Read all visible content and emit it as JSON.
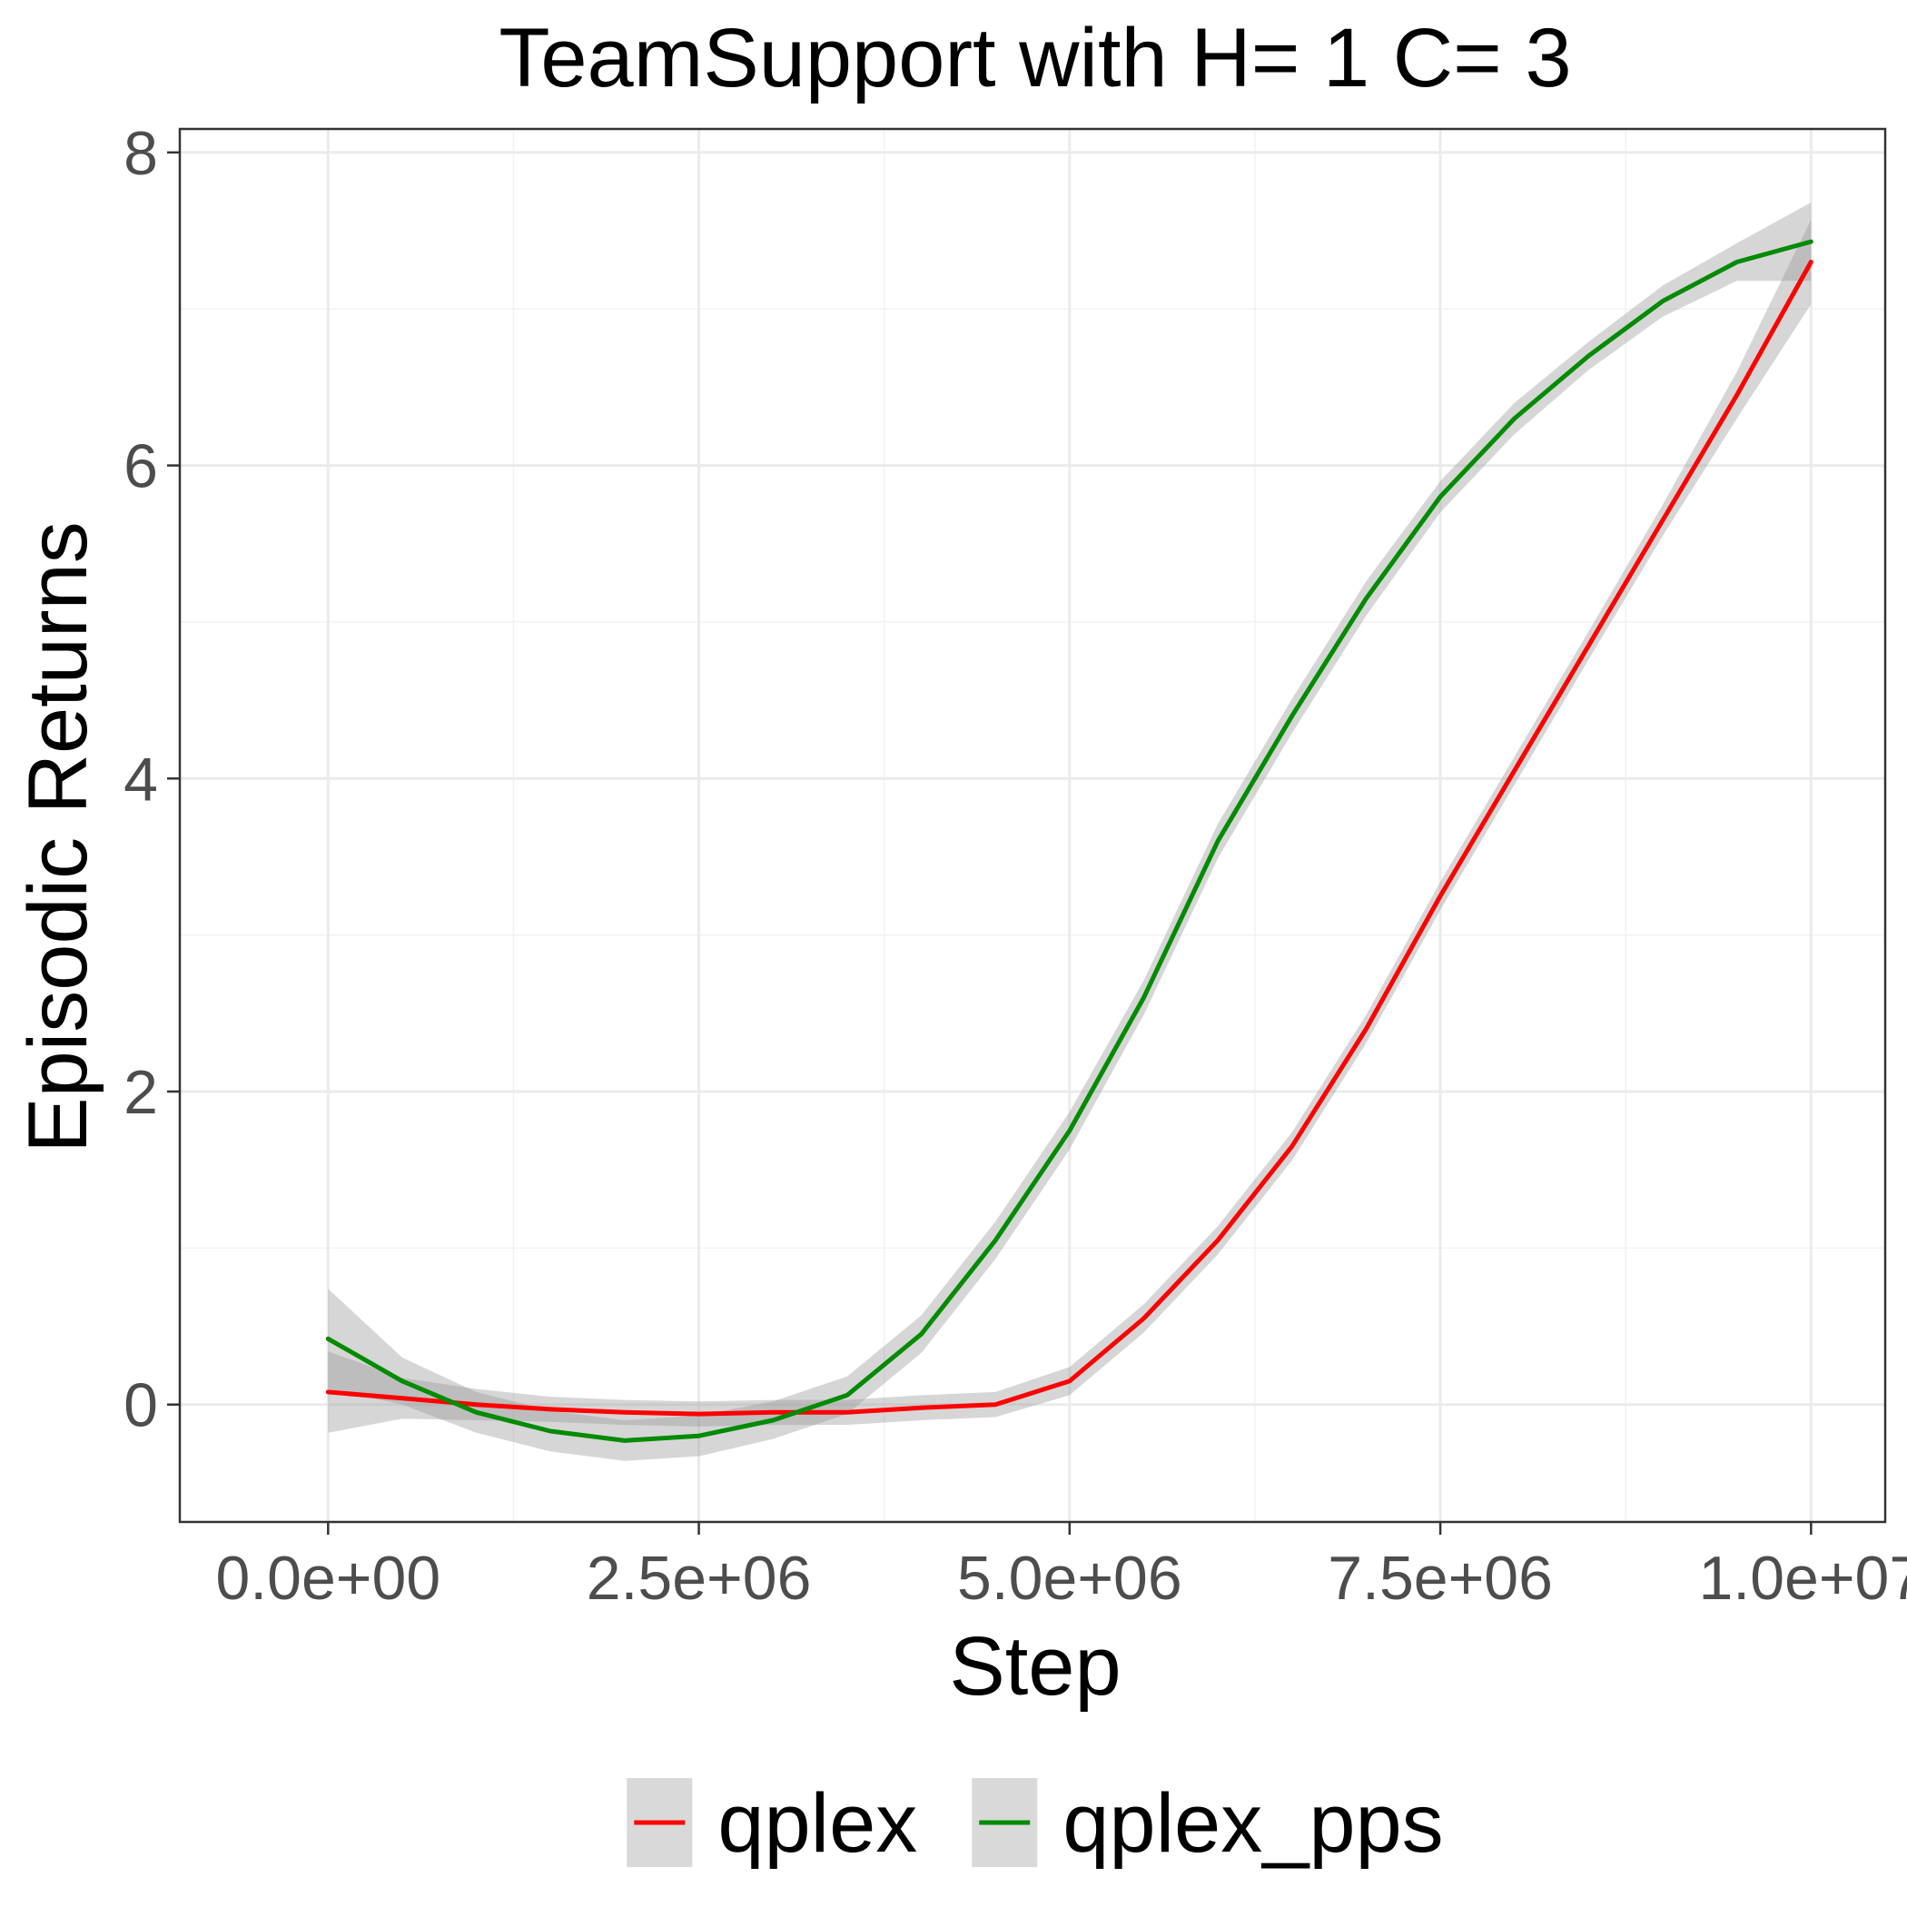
{
  "chart_data": {
    "type": "line",
    "title": "TeamSupport  with H= 1 C= 3",
    "xlabel": "Step",
    "ylabel": "Episodic Returns",
    "xlim": [
      -1000000,
      10500000
    ],
    "ylim": [
      -0.75,
      8.15
    ],
    "x_ticks": [
      0,
      2500000,
      5000000,
      7500000,
      10000000
    ],
    "x_tick_labels": [
      "0.0e+00",
      "2.5e+06",
      "5.0e+06",
      "7.5e+06",
      "1.0e+07"
    ],
    "y_ticks": [
      0,
      2,
      4,
      6,
      8
    ],
    "y_tick_labels": [
      "0",
      "2",
      "4",
      "6",
      "8"
    ],
    "grid": true,
    "legend_position": "bottom",
    "series": [
      {
        "name": "qplex",
        "color": "#ff0000",
        "band_color": "#999999",
        "x": [
          0,
          500000,
          1000000,
          1500000,
          2000000,
          2500000,
          3000000,
          3500000,
          4000000,
          4500000,
          5000000,
          5500000,
          6000000,
          6500000,
          7000000,
          7500000,
          8000000,
          8500000,
          9000000,
          9500000,
          10000000
        ],
        "y": [
          0.08,
          0.04,
          0.0,
          -0.03,
          -0.05,
          -0.06,
          -0.05,
          -0.05,
          -0.02,
          0.0,
          0.15,
          0.55,
          1.05,
          1.65,
          2.4,
          3.25,
          4.05,
          4.85,
          5.65,
          6.45,
          7.3
        ],
        "lower": [
          -0.18,
          -0.09,
          -0.1,
          -0.11,
          -0.13,
          -0.14,
          -0.13,
          -0.13,
          -0.1,
          -0.08,
          0.06,
          0.46,
          0.96,
          1.56,
          2.31,
          3.16,
          3.96,
          4.76,
          5.55,
          6.3,
          7.03
        ],
        "upper": [
          0.34,
          0.17,
          0.1,
          0.05,
          0.03,
          0.02,
          0.03,
          0.03,
          0.06,
          0.08,
          0.24,
          0.64,
          1.14,
          1.74,
          2.49,
          3.34,
          4.14,
          4.94,
          5.75,
          6.6,
          7.57
        ]
      },
      {
        "name": "qplex_pps",
        "color": "#008b00",
        "band_color": "#999999",
        "x": [
          0,
          500000,
          1000000,
          1500000,
          2000000,
          2500000,
          3000000,
          3500000,
          4000000,
          4500000,
          5000000,
          5500000,
          6000000,
          6500000,
          7000000,
          7500000,
          8000000,
          8500000,
          9000000,
          9500000,
          10000000
        ],
        "y": [
          0.42,
          0.15,
          -0.05,
          -0.17,
          -0.23,
          -0.2,
          -0.1,
          0.06,
          0.45,
          1.05,
          1.75,
          2.6,
          3.6,
          4.4,
          5.15,
          5.8,
          6.3,
          6.7,
          7.05,
          7.3,
          7.43
        ],
        "lower": [
          0.1,
          0.0,
          -0.18,
          -0.3,
          -0.36,
          -0.33,
          -0.22,
          -0.06,
          0.33,
          0.93,
          1.63,
          2.49,
          3.49,
          4.29,
          5.04,
          5.7,
          6.2,
          6.61,
          6.95,
          7.18,
          7.18
        ],
        "upper": [
          0.74,
          0.3,
          0.08,
          -0.04,
          -0.1,
          -0.07,
          0.02,
          0.18,
          0.57,
          1.17,
          1.87,
          2.71,
          3.71,
          4.51,
          5.26,
          5.9,
          6.4,
          6.79,
          7.15,
          7.42,
          7.68
        ]
      }
    ]
  }
}
